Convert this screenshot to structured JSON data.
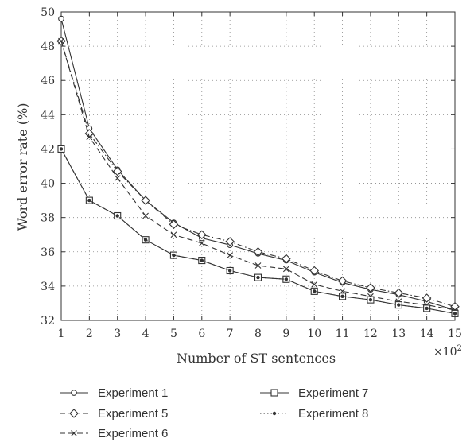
{
  "chart_data": {
    "type": "line",
    "xlabel": "Number of ST sentences",
    "ylabel": "Word error rate (%)",
    "x_multiplier": "×10",
    "x_multiplier_exp": "2",
    "x": [
      1,
      2,
      3,
      4,
      5,
      6,
      7,
      8,
      9,
      10,
      11,
      12,
      13,
      14,
      15
    ],
    "xlim": [
      1,
      15
    ],
    "ylim": [
      32,
      50
    ],
    "yticks": [
      32,
      34,
      36,
      38,
      40,
      42,
      44,
      46,
      48,
      50
    ],
    "grid": true,
    "legend_position": "bottom",
    "series": [
      {
        "name": "Experiment 1",
        "marker": "circle",
        "dash": "solid",
        "values": [
          49.6,
          43.2,
          40.8,
          39.0,
          37.7,
          36.8,
          36.4,
          35.9,
          35.5,
          34.8,
          34.2,
          33.8,
          33.5,
          33.1,
          32.6
        ]
      },
      {
        "name": "Experiment 5",
        "marker": "diamond",
        "dash": "dashdot",
        "values": [
          48.3,
          42.9,
          40.7,
          39.0,
          37.6,
          37.0,
          36.6,
          36.0,
          35.6,
          34.9,
          34.3,
          33.9,
          33.6,
          33.3,
          32.8
        ]
      },
      {
        "name": "Experiment 6",
        "marker": "cross",
        "dash": "dashed",
        "values": [
          48.3,
          42.7,
          40.3,
          38.1,
          37.0,
          36.5,
          35.8,
          35.2,
          35.0,
          34.1,
          33.7,
          33.4,
          33.1,
          32.9,
          32.6
        ]
      },
      {
        "name": "Experiment 7",
        "marker": "square",
        "dash": "solid",
        "values": [
          42.0,
          39.0,
          38.1,
          36.7,
          35.8,
          35.5,
          34.9,
          34.5,
          34.4,
          33.7,
          33.4,
          33.2,
          32.9,
          32.7,
          32.4
        ]
      },
      {
        "name": "Experiment 8",
        "marker": "dot",
        "dash": "dotted",
        "values": [
          42.0,
          39.0,
          38.1,
          36.7,
          35.8,
          35.5,
          34.9,
          34.5,
          34.4,
          33.7,
          33.4,
          33.2,
          32.9,
          32.7,
          32.4
        ]
      }
    ]
  }
}
